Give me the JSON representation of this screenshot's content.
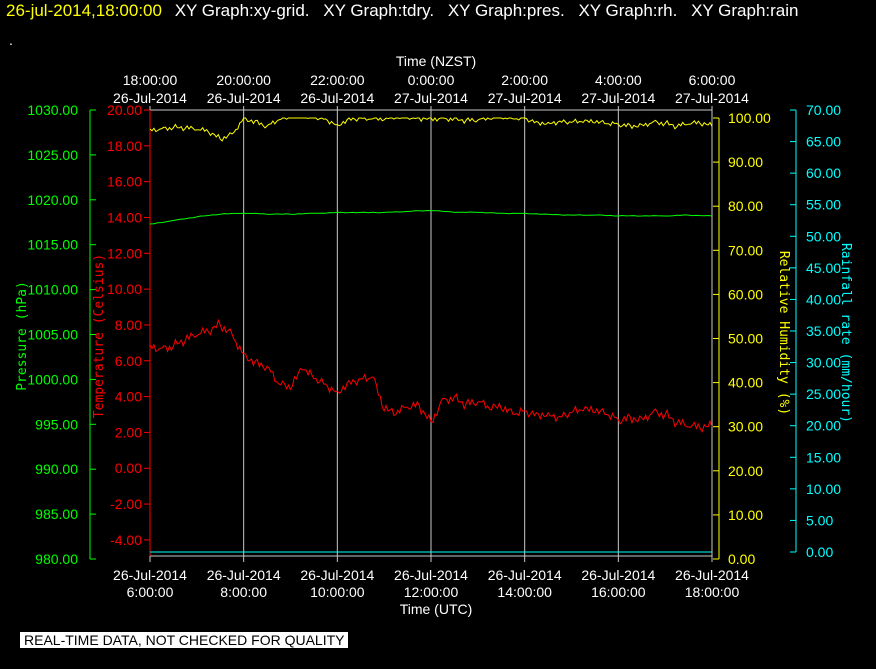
{
  "header": {
    "timestamp": "26-jul-2014,18:00:00",
    "titles": [
      "XY Graph:xy-grid.",
      "XY Graph:tdry.",
      "XY Graph:pres.",
      "XY Graph:rh.",
      "XY Graph:rain"
    ],
    "dot": "."
  },
  "notice": "REAL-TIME DATA, NOT CHECKED FOR QUALITY",
  "colors": {
    "pressure": "#00ff00",
    "temperature": "#ff0000",
    "humidity": "#ffff00",
    "rain": "#00ffff",
    "grid": "#c8c8c8",
    "text": "#ffffff"
  },
  "chart_data": {
    "type": "line",
    "x_top_label": "Time (NZST)",
    "x_bottom_label": "Time (UTC)",
    "top_ticks": [
      {
        "time": "18:00:00",
        "date": "26-Jul-2014"
      },
      {
        "time": "20:00:00",
        "date": "26-Jul-2014"
      },
      {
        "time": "22:00:00",
        "date": "26-Jul-2014"
      },
      {
        "time": "0:00:00",
        "date": "27-Jul-2014"
      },
      {
        "time": "2:00:00",
        "date": "27-Jul-2014"
      },
      {
        "time": "4:00:00",
        "date": "27-Jul-2014"
      },
      {
        "time": "6:00:00",
        "date": "27-Jul-2014"
      }
    ],
    "bottom_ticks": [
      {
        "date": "26-Jul-2014",
        "time": "6:00:00"
      },
      {
        "date": "26-Jul-2014",
        "time": "8:00:00"
      },
      {
        "date": "26-Jul-2014",
        "time": "10:00:00"
      },
      {
        "date": "26-Jul-2014",
        "time": "12:00:00"
      },
      {
        "date": "26-Jul-2014",
        "time": "14:00:00"
      },
      {
        "date": "26-Jul-2014",
        "time": "16:00:00"
      },
      {
        "date": "26-Jul-2014",
        "time": "18:00:00"
      }
    ],
    "x_range_hours_utc": [
      6,
      18
    ],
    "grid": true,
    "axes": {
      "pressure": {
        "label": "Pressure (hPa)",
        "range": [
          980,
          1030
        ],
        "ticks": [
          "980.00",
          "985.00",
          "990.00",
          "995.00",
          "1000.00",
          "1005.00",
          "1010.00",
          "1015.00",
          "1020.00",
          "1025.00",
          "1030.00"
        ]
      },
      "temperature": {
        "label": "Temperature (Celsius)",
        "range": [
          -4.9,
          20
        ],
        "ticks": [
          "-4.00",
          "-2.00",
          "0.00",
          "2.00",
          "4.00",
          "6.00",
          "8.00",
          "10.00",
          "12.00",
          "14.00",
          "16.00",
          "18.00",
          "20.00"
        ]
      },
      "humidity": {
        "label": "Relative Humidity (%)",
        "range": [
          0,
          100
        ],
        "ticks": [
          "0.00",
          "10.00",
          "20.00",
          "30.00",
          "40.00",
          "50.00",
          "60.00",
          "70.00",
          "80.00",
          "90.00",
          "100.00"
        ]
      },
      "rain": {
        "label": "Rainfall rate (mm/hour)",
        "range": [
          0,
          70
        ],
        "ticks": [
          "0.00",
          "5.00",
          "10.00",
          "15.00",
          "20.00",
          "25.00",
          "30.00",
          "35.00",
          "40.00",
          "45.00",
          "50.00",
          "55.00",
          "60.00",
          "65.00",
          "70.00"
        ]
      }
    },
    "series": [
      {
        "key": "temperature",
        "x": [
          6.0,
          6.25,
          6.5,
          6.75,
          7.0,
          7.25,
          7.5,
          7.75,
          8.0,
          8.25,
          8.5,
          8.75,
          9.0,
          9.25,
          9.5,
          9.75,
          10.0,
          10.25,
          10.5,
          10.75,
          11.0,
          11.25,
          11.5,
          11.75,
          12.0,
          12.25,
          12.5,
          12.75,
          13.0,
          13.25,
          13.5,
          13.75,
          14.0,
          14.25,
          14.5,
          14.75,
          15.0,
          15.25,
          15.5,
          15.75,
          16.0,
          16.25,
          16.5,
          16.75,
          17.0,
          17.25,
          17.5,
          17.75,
          18.0
        ],
        "values": [
          6.9,
          6.7,
          6.8,
          7.1,
          7.4,
          7.6,
          8.0,
          7.5,
          6.4,
          6.0,
          5.7,
          4.7,
          4.4,
          5.5,
          5.0,
          4.7,
          4.3,
          4.9,
          5.0,
          5.1,
          3.2,
          3.0,
          3.4,
          3.5,
          2.6,
          3.9,
          4.0,
          3.6,
          3.7,
          3.3,
          3.3,
          3.0,
          3.2,
          3.1,
          3.1,
          2.9,
          3.1,
          3.2,
          3.1,
          3.0,
          2.7,
          2.9,
          2.8,
          3.2,
          3.0,
          2.5,
          2.3,
          2.2,
          2.3
        ]
      },
      {
        "key": "pressure",
        "x": [
          6.0,
          6.5,
          7.0,
          7.5,
          8.0,
          8.5,
          9.0,
          9.5,
          10.0,
          10.5,
          11.0,
          11.5,
          12.0,
          12.5,
          13.0,
          13.5,
          14.0,
          14.5,
          15.0,
          15.5,
          16.0,
          16.5,
          17.0,
          17.5,
          18.0
        ],
        "values": [
          1017.3,
          1017.7,
          1018.1,
          1018.4,
          1018.5,
          1018.4,
          1018.4,
          1018.5,
          1018.6,
          1018.6,
          1018.6,
          1018.7,
          1018.8,
          1018.6,
          1018.6,
          1018.5,
          1018.5,
          1018.4,
          1018.3,
          1018.3,
          1018.2,
          1018.2,
          1018.2,
          1018.3,
          1018.2
        ]
      },
      {
        "key": "humidity",
        "x": [
          6.0,
          6.25,
          6.5,
          6.75,
          7.0,
          7.25,
          7.5,
          7.75,
          8.0,
          8.25,
          8.5,
          8.75,
          9.0,
          9.25,
          9.5,
          9.75,
          10.0,
          10.25,
          10.5,
          10.75,
          11.0,
          11.25,
          11.5,
          11.75,
          12.0,
          12.25,
          12.5,
          12.75,
          13.0,
          13.25,
          13.5,
          13.75,
          14.0,
          14.25,
          14.5,
          14.75,
          15.0,
          15.25,
          15.5,
          15.75,
          16.0,
          16.25,
          16.5,
          16.75,
          17.0,
          17.25,
          17.5,
          17.75,
          18.0
        ],
        "values": [
          97.5,
          97.6,
          97.8,
          97.6,
          97.3,
          96.8,
          95.2,
          96.4,
          100.0,
          99.4,
          98.2,
          99.6,
          100.0,
          100.0,
          100.0,
          99.8,
          98.5,
          100.0,
          100.0,
          99.8,
          99.6,
          100.0,
          100.0,
          100.0,
          100.0,
          100.0,
          100.0,
          99.5,
          99.5,
          99.8,
          100.0,
          99.8,
          100.0,
          99.2,
          99.0,
          99.3,
          99.0,
          99.0,
          98.9,
          98.7,
          98.6,
          98.4,
          98.5,
          99.2,
          98.8,
          98.0,
          98.6,
          98.7,
          98.1
        ]
      },
      {
        "key": "rain",
        "x": [
          6.0,
          18.0
        ],
        "values": [
          0,
          0
        ]
      }
    ]
  }
}
